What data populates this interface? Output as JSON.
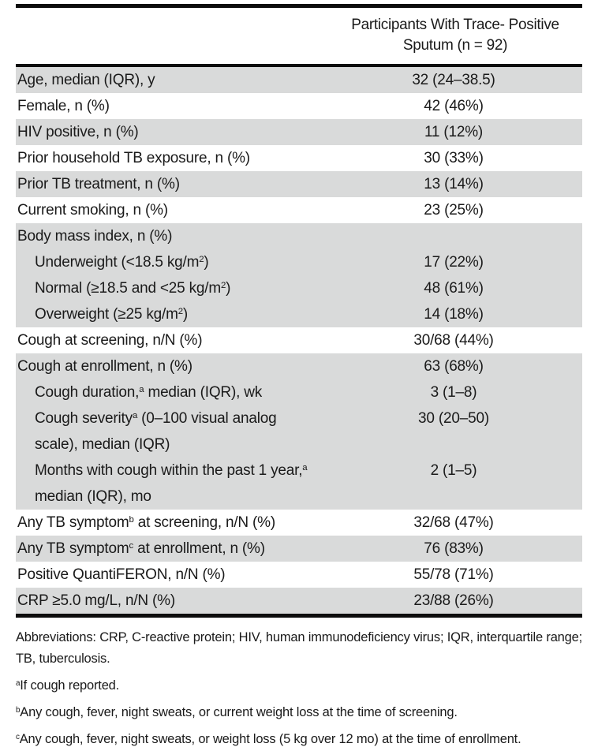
{
  "table": {
    "header": {
      "line1": "Participants With Trace- Positive",
      "line2": "Sputum (n = 92)"
    },
    "rows": [
      {
        "label": [
          {
            "t": "Age, median (IQR), y"
          }
        ],
        "value": "32 (24–38.5)",
        "shade": true,
        "indent": false
      },
      {
        "label": [
          {
            "t": "Female, n (%)"
          }
        ],
        "value": "42 (46%)",
        "shade": false,
        "indent": false
      },
      {
        "label": [
          {
            "t": "HIV positive, n (%)"
          }
        ],
        "value": "11 (12%)",
        "shade": true,
        "indent": false
      },
      {
        "label": [
          {
            "t": "Prior household TB exposure, n (%)"
          }
        ],
        "value": "30 (33%)",
        "shade": false,
        "indent": false
      },
      {
        "label": [
          {
            "t": "Prior TB treatment, n (%)"
          }
        ],
        "value": "13 (14%)",
        "shade": true,
        "indent": false
      },
      {
        "label": [
          {
            "t": "Current smoking, n (%)"
          }
        ],
        "value": "23 (25%)",
        "shade": false,
        "indent": false
      },
      {
        "label": [
          {
            "t": "Body mass index, n (%)"
          }
        ],
        "value": "",
        "shade": true,
        "indent": false
      },
      {
        "label": [
          {
            "t": "Underweight (<18.5 kg/m"
          },
          {
            "t": "2",
            "sup": true
          },
          {
            "t": ")"
          }
        ],
        "value": "17 (22%)",
        "shade": true,
        "indent": true
      },
      {
        "label": [
          {
            "t": "Normal (≥18.5 and <25 kg/m"
          },
          {
            "t": "2",
            "sup": true
          },
          {
            "t": ")"
          }
        ],
        "value": "48 (61%)",
        "shade": true,
        "indent": true
      },
      {
        "label": [
          {
            "t": "Overweight (≥25 kg/m"
          },
          {
            "t": "2",
            "sup": true
          },
          {
            "t": ")"
          }
        ],
        "value": "14 (18%)",
        "shade": true,
        "indent": true
      },
      {
        "label": [
          {
            "t": "Cough at screening, n/N (%)"
          }
        ],
        "value": "30/68 (44%)",
        "shade": false,
        "indent": false
      },
      {
        "label": [
          {
            "t": "Cough at enrollment, n (%)"
          }
        ],
        "value": "63 (68%)",
        "shade": true,
        "indent": false
      },
      {
        "label": [
          {
            "t": "Cough duration,"
          },
          {
            "t": "a",
            "sup": true
          },
          {
            "t": " median (IQR), wk"
          }
        ],
        "value": "3 (1–8)",
        "shade": true,
        "indent": true
      },
      {
        "label": [
          {
            "t": "Cough severity"
          },
          {
            "t": "a",
            "sup": true
          },
          {
            "t": " (0–100 visual analog scale), median (IQR)"
          }
        ],
        "value": "30 (20–50)",
        "shade": true,
        "indent": true
      },
      {
        "label": [
          {
            "t": "Months with cough within the past 1 year,"
          },
          {
            "t": "a",
            "sup": true
          },
          {
            "t": " median (IQR), mo"
          }
        ],
        "value": "2 (1–5)",
        "shade": true,
        "indent": true
      },
      {
        "label": [
          {
            "t": "Any TB symptom"
          },
          {
            "t": "b",
            "sup": true
          },
          {
            "t": " at screening, n/N (%)"
          }
        ],
        "value": "32/68 (47%)",
        "shade": false,
        "indent": false
      },
      {
        "label": [
          {
            "t": "Any TB symptom"
          },
          {
            "t": "c",
            "sup": true
          },
          {
            "t": " at enrollment, n (%)"
          }
        ],
        "value": "76 (83%)",
        "shade": true,
        "indent": false
      },
      {
        "label": [
          {
            "t": "Positive QuantiFERON, n/N (%)"
          }
        ],
        "value": "55/78 (71%)",
        "shade": false,
        "indent": false
      },
      {
        "label": [
          {
            "t": "CRP ≥5.0 mg/L, n/N (%)"
          }
        ],
        "value": "23/88 (26%)",
        "shade": true,
        "indent": false
      }
    ],
    "footnotes": [
      {
        "parts": [
          {
            "t": "Abbreviations: CRP, C-reactive protein; HIV, human immunodeficiency virus; IQR, interquartile range; TB, tuberculosis."
          }
        ],
        "justify": true
      },
      {
        "parts": [
          {
            "t": "a",
            "sup": true
          },
          {
            "t": "If cough reported."
          }
        ],
        "justify": false
      },
      {
        "parts": [
          {
            "t": "b",
            "sup": true
          },
          {
            "t": "Any cough, fever, night sweats, or current weight loss at the time of screening."
          }
        ],
        "justify": false
      },
      {
        "parts": [
          {
            "t": "c",
            "sup": true
          },
          {
            "t": "Any cough, fever, night sweats, or weight loss (5 kg over 12 mo) at the time of enrollment."
          }
        ],
        "justify": false
      }
    ],
    "colors": {
      "row_shade": "#d9dada",
      "rule": "#0c0c0c",
      "text": "#1a1a1a"
    }
  }
}
